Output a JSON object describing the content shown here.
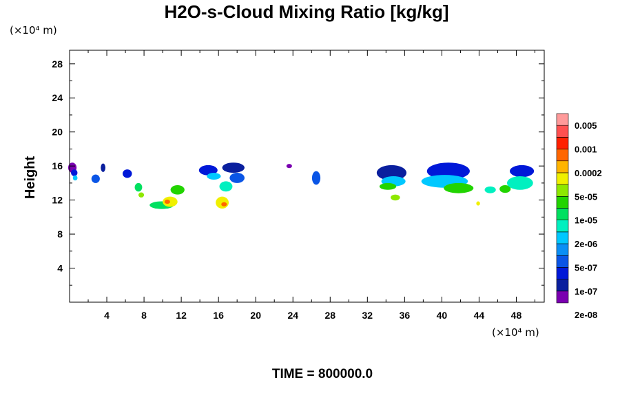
{
  "chart_data": {
    "type": "heatmap",
    "title": "H2O-s-Cloud Mixing Ratio [kg/kg]",
    "xlabel": "",
    "ylabel": "Height",
    "x_unit": "(×10⁴ m)",
    "y_unit": "(×10⁴ m)",
    "xlim": [
      0,
      51
    ],
    "ylim": [
      0,
      29.6
    ],
    "x_ticks": [
      "4",
      "8",
      "12",
      "16",
      "20",
      "24",
      "28",
      "32",
      "36",
      "40",
      "44",
      "48"
    ],
    "y_ticks": [
      "4",
      "8",
      "12",
      "16",
      "20",
      "24",
      "28"
    ],
    "footer": "TIME = 800000.0",
    "colorbar": {
      "labels": [
        "0.005",
        "0.001",
        "0.0002",
        "5e-05",
        "1e-05",
        "2e-06",
        "5e-07",
        "1e-07",
        "2e-08"
      ],
      "colors": [
        "#7a00b0",
        "#0a1f9e",
        "#0018d8",
        "#0a55e6",
        "#0a8ff5",
        "#00c8ff",
        "#00f0c0",
        "#00e060",
        "#22d400",
        "#8ee800",
        "#f0f000",
        "#ffb400",
        "#ff6600",
        "#ff2000",
        "#ff5050",
        "#ff9a9a"
      ]
    },
    "cells": [
      {
        "x": 0.3,
        "y": 15.8,
        "w": 0.9,
        "h": 1.2,
        "level": 0
      },
      {
        "x": 0.5,
        "y": 15.2,
        "w": 0.7,
        "h": 0.8,
        "level": 2
      },
      {
        "x": 0.6,
        "y": 14.6,
        "w": 0.5,
        "h": 0.6,
        "level": 5
      },
      {
        "x": 2.8,
        "y": 14.5,
        "w": 0.9,
        "h": 1.0,
        "level": 3
      },
      {
        "x": 3.6,
        "y": 15.8,
        "w": 0.5,
        "h": 1.0,
        "level": 1
      },
      {
        "x": 6.2,
        "y": 15.1,
        "w": 1.0,
        "h": 1.0,
        "level": 2
      },
      {
        "x": 7.4,
        "y": 13.5,
        "w": 0.8,
        "h": 1.0,
        "level": 7
      },
      {
        "x": 7.7,
        "y": 12.6,
        "w": 0.6,
        "h": 0.6,
        "level": 9
      },
      {
        "x": 9.9,
        "y": 11.4,
        "w": 2.6,
        "h": 0.9,
        "level": 7
      },
      {
        "x": 10.8,
        "y": 11.8,
        "w": 1.6,
        "h": 1.2,
        "level": 10
      },
      {
        "x": 11.6,
        "y": 13.2,
        "w": 1.5,
        "h": 1.1,
        "level": 8
      },
      {
        "x": 10.5,
        "y": 11.8,
        "w": 0.6,
        "h": 0.5,
        "level": 12
      },
      {
        "x": 14.9,
        "y": 15.5,
        "w": 2.0,
        "h": 1.2,
        "level": 2
      },
      {
        "x": 15.5,
        "y": 14.8,
        "w": 1.5,
        "h": 0.8,
        "level": 5
      },
      {
        "x": 16.4,
        "y": 11.7,
        "w": 1.4,
        "h": 1.4,
        "level": 10
      },
      {
        "x": 16.6,
        "y": 11.5,
        "w": 0.6,
        "h": 0.5,
        "level": 12
      },
      {
        "x": 17.6,
        "y": 15.8,
        "w": 2.4,
        "h": 1.2,
        "level": 1
      },
      {
        "x": 18.0,
        "y": 14.6,
        "w": 1.6,
        "h": 1.2,
        "level": 3
      },
      {
        "x": 16.8,
        "y": 13.6,
        "w": 1.4,
        "h": 1.2,
        "level": 6
      },
      {
        "x": 23.6,
        "y": 16.0,
        "w": 0.6,
        "h": 0.5,
        "level": 0
      },
      {
        "x": 26.5,
        "y": 14.6,
        "w": 0.9,
        "h": 1.6,
        "level": 3
      },
      {
        "x": 34.6,
        "y": 15.2,
        "w": 3.2,
        "h": 1.8,
        "level": 1
      },
      {
        "x": 34.8,
        "y": 14.2,
        "w": 2.6,
        "h": 1.2,
        "level": 5
      },
      {
        "x": 34.2,
        "y": 13.6,
        "w": 1.8,
        "h": 0.8,
        "level": 8
      },
      {
        "x": 35.0,
        "y": 12.3,
        "w": 1.0,
        "h": 0.7,
        "level": 9
      },
      {
        "x": 40.7,
        "y": 15.4,
        "w": 4.6,
        "h": 2.0,
        "level": 2
      },
      {
        "x": 40.3,
        "y": 14.2,
        "w": 5.0,
        "h": 1.5,
        "level": 5
      },
      {
        "x": 41.8,
        "y": 13.4,
        "w": 3.2,
        "h": 1.2,
        "level": 8
      },
      {
        "x": 45.2,
        "y": 13.2,
        "w": 1.2,
        "h": 0.8,
        "level": 6
      },
      {
        "x": 46.8,
        "y": 13.3,
        "w": 1.2,
        "h": 0.9,
        "level": 8
      },
      {
        "x": 48.6,
        "y": 15.4,
        "w": 2.6,
        "h": 1.4,
        "level": 2
      },
      {
        "x": 48.4,
        "y": 14.0,
        "w": 2.8,
        "h": 1.6,
        "level": 6
      },
      {
        "x": 43.9,
        "y": 11.6,
        "w": 0.4,
        "h": 0.5,
        "level": 10
      }
    ]
  }
}
